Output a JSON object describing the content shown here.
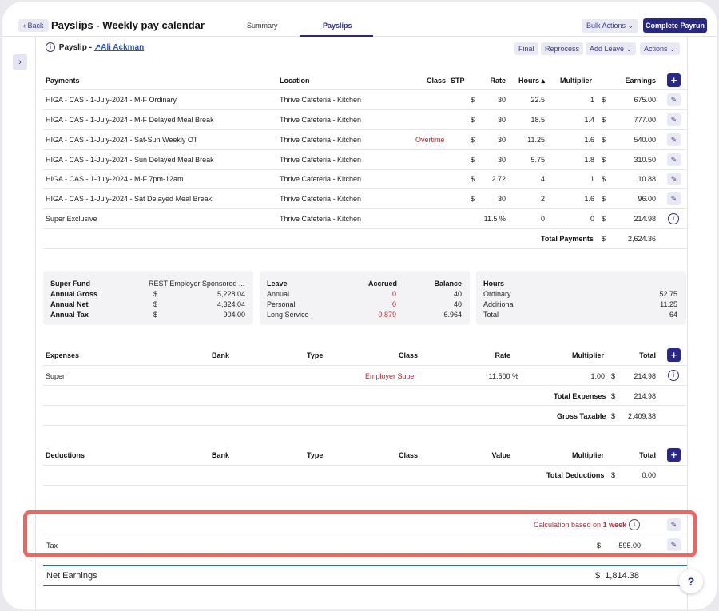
{
  "header": {
    "back_label": "‹ Back",
    "title": "Payslips - Weekly pay calendar",
    "tabs": [
      "Summary",
      "Payslips"
    ],
    "bulk_actions": "Bulk Actions ⌄",
    "complete_payrun": "Complete Payrun"
  },
  "payslip": {
    "label": "Payslip -",
    "employee": "Ali Ackman",
    "actions": [
      "Final",
      "Reprocess",
      "Add Leave ⌄",
      "Actions ⌄"
    ]
  },
  "payments": {
    "headers": [
      "Payments",
      "Location",
      "Class",
      "STP",
      "Rate",
      "Hours ▴",
      "Multiplier",
      "Earnings"
    ],
    "rows": [
      {
        "name": "HIGA - CAS - 1-July-2024 - M-F Ordinary",
        "location": "Thrive Cafeteria - Kitchen",
        "class": "",
        "cur": "$",
        "rate": "30",
        "hours": "22.5",
        "mult": "1",
        "ecur": "$",
        "earn": "675.00",
        "icon": "edit"
      },
      {
        "name": "HIGA - CAS - 1-July-2024 - M-F Delayed Meal Break",
        "location": "Thrive Cafeteria - Kitchen",
        "class": "",
        "cur": "$",
        "rate": "30",
        "hours": "18.5",
        "mult": "1.4",
        "ecur": "$",
        "earn": "777.00",
        "icon": "edit"
      },
      {
        "name": "HIGA - CAS - 1-July-2024 - Sat-Sun Weekly OT",
        "location": "Thrive Cafeteria - Kitchen",
        "class": "Overtime",
        "cur": "$",
        "rate": "30",
        "hours": "11.25",
        "mult": "1.6",
        "ecur": "$",
        "earn": "540.00",
        "icon": "edit"
      },
      {
        "name": "HIGA - CAS - 1-July-2024 - Sun Delayed Meal Break",
        "location": "Thrive Cafeteria - Kitchen",
        "class": "",
        "cur": "$",
        "rate": "30",
        "hours": "5.75",
        "mult": "1.8",
        "ecur": "$",
        "earn": "310.50",
        "icon": "edit"
      },
      {
        "name": "HIGA - CAS - 1-July-2024 - M-F 7pm-12am",
        "location": "Thrive Cafeteria - Kitchen",
        "class": "",
        "cur": "$",
        "rate": "2.72",
        "hours": "4",
        "mult": "1",
        "ecur": "$",
        "earn": "10.88",
        "icon": "edit"
      },
      {
        "name": "HIGA - CAS - 1-July-2024 - Sat Delayed Meal Break",
        "location": "Thrive Cafeteria - Kitchen",
        "class": "",
        "cur": "$",
        "rate": "30",
        "hours": "2",
        "mult": "1.6",
        "ecur": "$",
        "earn": "96.00",
        "icon": "edit"
      },
      {
        "name": "Super Exclusive",
        "location": "Thrive Cafeteria - Kitchen",
        "class": "",
        "cur": "",
        "rate": "11.5 %",
        "hours": "0",
        "mult": "0",
        "ecur": "$",
        "earn": "214.98",
        "icon": "info"
      }
    ],
    "total_label": "Total Payments",
    "total_cur": "$",
    "total_value": "2,624.36"
  },
  "super_card": {
    "fund_label": "Super Fund",
    "fund_value": "REST Employer Sponsored ...",
    "rows": [
      {
        "label": "Annual Gross",
        "cur": "$",
        "value": "5,228.04"
      },
      {
        "label": "Annual Net",
        "cur": "$",
        "value": "4,324.04"
      },
      {
        "label": "Annual Tax",
        "cur": "$",
        "value": "904.00"
      }
    ]
  },
  "leave_card": {
    "headers": [
      "Leave",
      "Accrued",
      "Balance"
    ],
    "rows": [
      {
        "type": "Annual",
        "accrued": "0",
        "balance": "40"
      },
      {
        "type": "Personal",
        "accrued": "0",
        "balance": "40"
      },
      {
        "type": "Long Service",
        "accrued": "0.879",
        "balance": "6.964"
      }
    ]
  },
  "hours_card": {
    "header": "Hours",
    "rows": [
      {
        "label": "Ordinary",
        "value": "52.75"
      },
      {
        "label": "Additional",
        "value": "11.25"
      },
      {
        "label": "Total",
        "value": "64"
      }
    ]
  },
  "expenses": {
    "headers": [
      "Expenses",
      "Bank",
      "Type",
      "Class",
      "Rate",
      "Multiplier",
      "Total"
    ],
    "rows": [
      {
        "name": "Super",
        "class": "Employer Super",
        "rate": "11.500 %",
        "mult": "1.00",
        "cur": "$",
        "total": "214.98"
      }
    ],
    "total_label": "Total Expenses",
    "total_cur": "$",
    "total_value": "214.98",
    "gross_label": "Gross Taxable",
    "gross_cur": "$",
    "gross_value": "2,409.38"
  },
  "deductions": {
    "headers": [
      "Deductions",
      "Bank",
      "Type",
      "Class",
      "Value",
      "Multiplier",
      "Total"
    ],
    "total_label": "Total Deductions",
    "total_cur": "$",
    "total_value": "0.00"
  },
  "tax": {
    "calc_prefix": "Calculation based on ",
    "calc_bold": "1 week",
    "label": "Tax",
    "cur": "$",
    "value": "595.00"
  },
  "net": {
    "label": "Net Earnings",
    "cur": "$",
    "value": "1,814.38"
  },
  "help": "?",
  "colors": {
    "accent": "#28288a",
    "highlight": "#ef6660",
    "negative": "#c8242c"
  }
}
